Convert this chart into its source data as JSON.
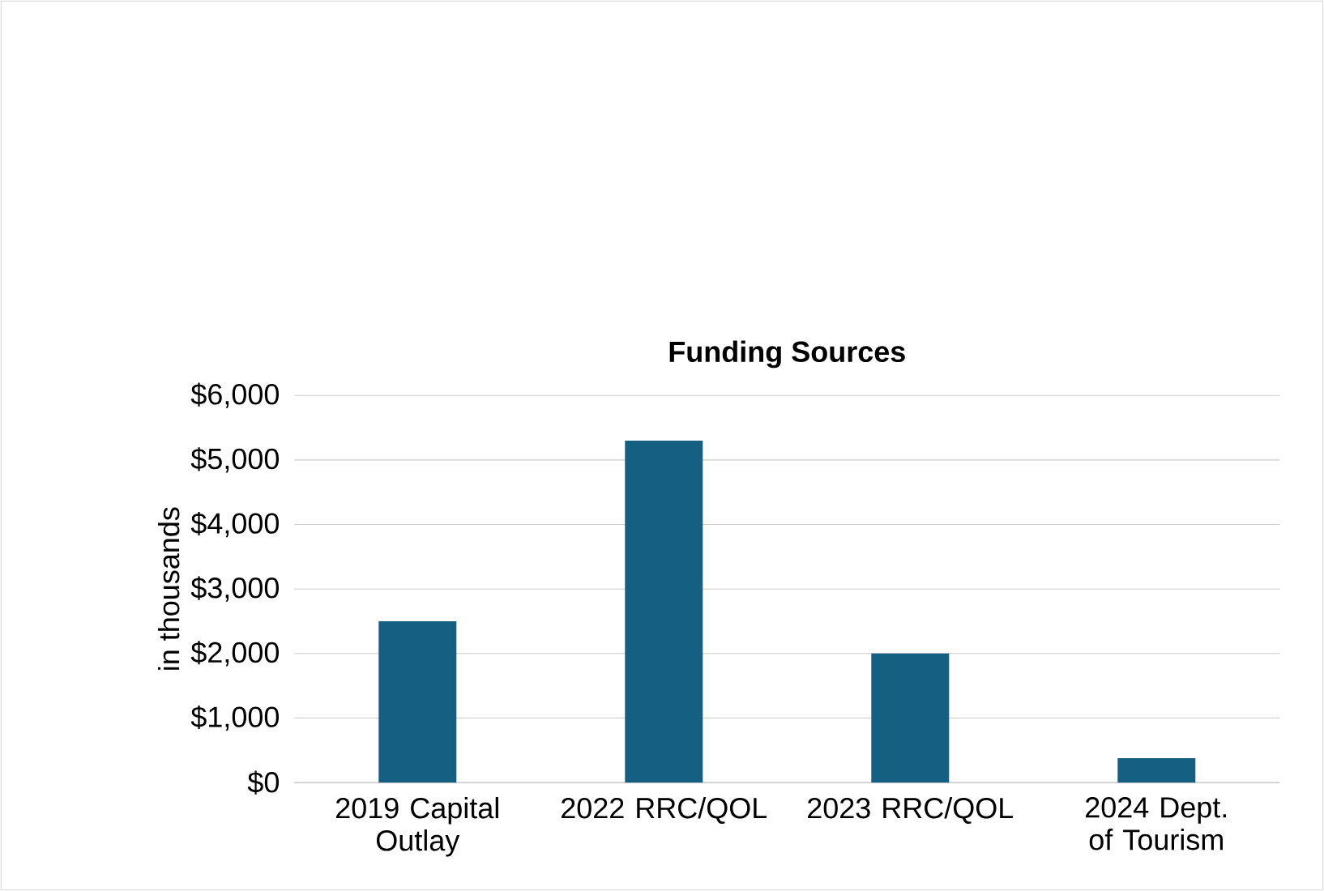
{
  "chart_data": {
    "type": "bar",
    "title": "Funding Sources",
    "ylabel": "in thousands",
    "categories": [
      "2019 Capital Outlay",
      "2022 RRC/QOL",
      "2023 RRC/QOL",
      "2024 Dept. of Tourism"
    ],
    "values": [
      2500,
      5300,
      2000,
      380
    ],
    "color": "#156082",
    "ylim": [
      0,
      6000
    ],
    "yticks": [
      {
        "value": 0,
        "label": "$0"
      },
      {
        "value": 1000,
        "label": "$1,000"
      },
      {
        "value": 2000,
        "label": "$2,000"
      },
      {
        "value": 3000,
        "label": "$3,000"
      },
      {
        "value": 4000,
        "label": "$4,000"
      },
      {
        "value": 5000,
        "label": "$5,000"
      },
      {
        "value": 6000,
        "label": "$6,000"
      }
    ],
    "grid": "y"
  }
}
